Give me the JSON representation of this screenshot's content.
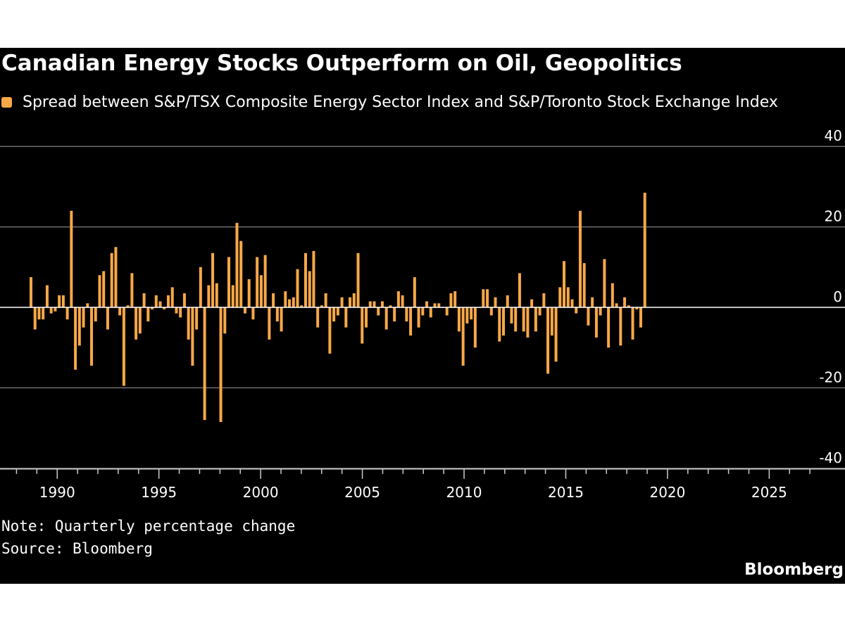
{
  "title": "Canadian Energy Stocks Outperform on Oil, Geopolitics",
  "note": "Note: Quarterly percentage change",
  "source": "Source: Bloomberg",
  "brand": "Bloomberg",
  "colors": {
    "bar": "#f8a846",
    "background": "#000000",
    "grid": "#6e6e6e",
    "text": "#ffffff"
  },
  "chart_data": {
    "type": "bar",
    "title": "Canadian Energy Stocks Outperform on Oil, Geopolitics",
    "xlabel": "",
    "ylabel": "",
    "series_name": "Spread between S&P/TSX Composite Energy Sector Index and S&P/Toronto Stock Exchange Index",
    "ylim": [
      -40,
      40
    ],
    "xlim": [
      1987.5,
      2027.5
    ],
    "y_ticks": [
      40,
      20,
      0,
      -20,
      -40
    ],
    "x_tick_labels": [
      "1990",
      "1995",
      "2000",
      "2005",
      "2010",
      "2015",
      "2020",
      "2025"
    ],
    "grid": true,
    "legend_position": "top-left",
    "x_start": "1988 Q1",
    "frequency": "quarterly",
    "values": [
      7.5,
      -5.5,
      -3,
      -3,
      5.5,
      -1.5,
      -1,
      3,
      3,
      -3,
      24,
      -15.5,
      -9.5,
      -5,
      1,
      -14.5,
      -3.5,
      8,
      9,
      -5.5,
      13.5,
      15,
      -2,
      -19.5,
      0.5,
      8.5,
      -8,
      -6.5,
      3.5,
      -3.5,
      -0.5,
      3,
      1.5,
      -0.5,
      3,
      5,
      -1.5,
      -2.5,
      3.5,
      -8,
      -14.5,
      -5.5,
      10,
      -28,
      5.5,
      13.5,
      6,
      -28.5,
      -6.5,
      12.5,
      5.5,
      21,
      16.5,
      -1.5,
      7,
      -3,
      12.5,
      8,
      13,
      -8,
      3.5,
      -3.5,
      -6,
      4,
      2,
      2.5,
      9.5,
      0.5,
      13.5,
      9,
      14,
      -5,
      0.5,
      3.5,
      -11.5,
      -3.5,
      -2,
      2.5,
      -5,
      2.5,
      3.5,
      13.5,
      -9,
      -5,
      1.5,
      1.5,
      -2,
      1.5,
      -5.5,
      0.5,
      -3.5,
      4,
      3,
      -3.5,
      -7,
      7.5,
      -5,
      -2,
      1.5,
      -2.5,
      1,
      1,
      0,
      -2,
      3.5,
      4,
      -6,
      -14.5,
      -4,
      -3,
      -10,
      0,
      4.5,
      4.5,
      -2,
      2.5,
      -8.5,
      -7,
      3,
      -4,
      -6,
      8.5,
      -6,
      -7.5,
      2,
      -6,
      -2,
      3.5,
      -16.5,
      -7,
      -13.5,
      5,
      11.5,
      5,
      2,
      -1.5,
      24,
      11,
      -4.5,
      2.5,
      -7.5,
      -2,
      12,
      -10,
      6,
      1,
      -9.5,
      2.5,
      0.5,
      -8,
      -0.5,
      -5,
      28.5
    ]
  }
}
